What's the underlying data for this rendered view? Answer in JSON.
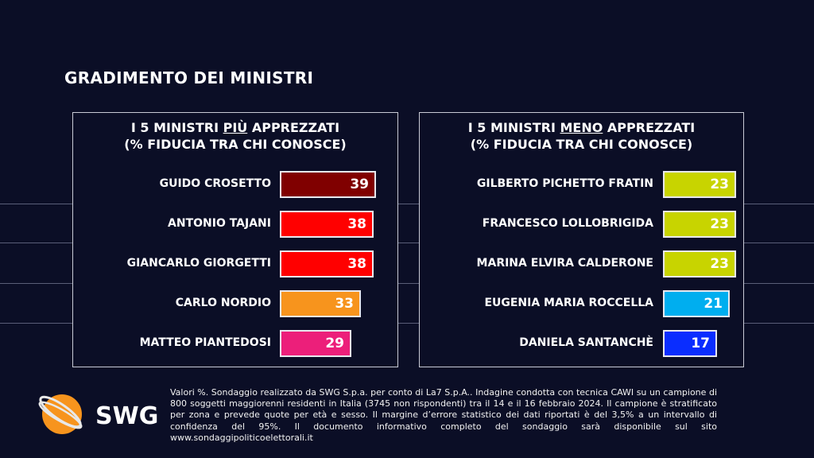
{
  "title": "GRADIMENTO DEI MINISTRI",
  "chart_data": [
    {
      "type": "bar",
      "orientation": "horizontal",
      "title_line1_pre": "I 5 MINISTRI ",
      "title_line1_emph": "PIÙ",
      "title_line1_post": " APPREZZATI",
      "title_line2": "(% FIDUCIA TRA CHI CONOSCE)",
      "categories": [
        "GUIDO CROSETTO",
        "ANTONIO TAJANI",
        "GIANCARLO GIORGETTI",
        "CARLO NORDIO",
        "MATTEO PIANTEDOSI"
      ],
      "values": [
        39,
        38,
        38,
        33,
        29
      ],
      "colors": [
        "#800000",
        "#ff0000",
        "#ff0000",
        "#f7941d",
        "#ec1f7a"
      ]
    },
    {
      "type": "bar",
      "orientation": "horizontal",
      "title_line1_pre": "I 5 MINISTRI ",
      "title_line1_emph": "MENO",
      "title_line1_post": " APPREZZATI",
      "title_line2": "(% FIDUCIA TRA CHI CONOSCE)",
      "categories": [
        "GILBERTO PICHETTO FRATIN",
        "FRANCESCO LOLLOBRIGIDA",
        "MARINA ELVIRA CALDERONE",
        "EUGENIA MARIA ROCCELLA",
        "DANIELA SANTANCHÈ"
      ],
      "values": [
        23,
        23,
        23,
        21,
        17
      ],
      "colors": [
        "#c8d400",
        "#c8d400",
        "#c8d400",
        "#00aeef",
        "#0a2dff"
      ]
    }
  ],
  "logo": {
    "text": "SWG",
    "accent": "#f7941d"
  },
  "footer": "Valori %. Sondaggio realizzato da SWG S.p.a. per conto di La7 S.p.A.. Indagine condotta con tecnica CAWI su un campione di 800 soggetti maggiorenni residenti in Italia (3745 non rispondenti) tra il 14 e il 16 febbraio 2024. Il campione è stratificato per zona e prevede quote per età e sesso. Il margine d’errore statistico dei dati riportati è del 3,5% a un intervallo di confidenza del 95%. Il documento informativo completo del sondaggio sarà disponibile sul sito www.sondaggipoliticoelettorali.it"
}
